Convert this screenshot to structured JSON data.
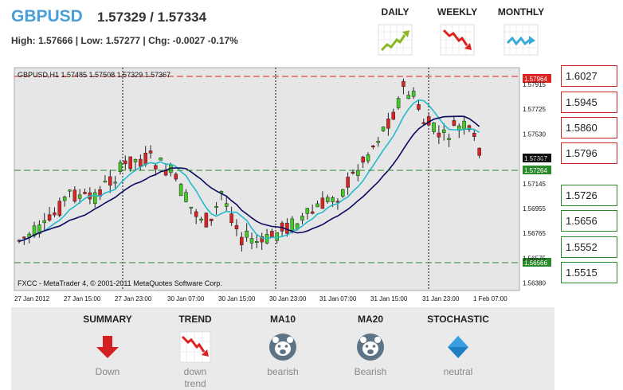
{
  "header": {
    "pair": "GBPUSD",
    "quote": "1.57329 / 1.57334",
    "stats": "High: 1.57666 | Low: 1.57277 | Chg: -0.0027 -0.17%"
  },
  "timeframes": [
    {
      "label": "DAILY",
      "icon": "uptrend-icon",
      "color": "#8ab820"
    },
    {
      "label": "WEEKLY",
      "icon": "downtrend-icon",
      "color": "#dd2222"
    },
    {
      "label": "MONTHLY",
      "icon": "sideways-icon",
      "color": "#3aaad8"
    }
  ],
  "chart": {
    "info": "GBPUSD,H1  1.57485 1.57508 1.57329 1.57367",
    "copyright": "FXCC - MetaTrader 4, © 2001-2011 MetaQuotes Software Corp.",
    "price_labels": [
      "1.57915",
      "1.57725",
      "1.57530",
      "1.57335",
      "1.57145",
      "1.56955",
      "1.56765",
      "1.56575",
      "1.56380"
    ],
    "level_labels": {
      "upper": "1.57964",
      "current": "1.57367",
      "mid": "1.57264",
      "lower": "1.56566"
    },
    "time_labels": [
      "27 Jan 2012",
      "27 Jan 15:00",
      "27 Jan 23:00",
      "30 Jan 07:00",
      "30 Jan 15:00",
      "30 Jan 23:00",
      "31 Jan 07:00",
      "31 Jan 15:00",
      "31 Jan 23:00",
      "1 Feb 07:00"
    ]
  },
  "chart_data": {
    "type": "candlestick",
    "symbol": "GBPUSD",
    "timeframe": "H1",
    "ylim": [
      1.5638,
      1.5801
    ],
    "resistance_levels": [
      1.6027,
      1.5945,
      1.586,
      1.5796
    ],
    "support_levels": [
      1.5726,
      1.5656,
      1.5552,
      1.5515
    ],
    "horizontal_lines": {
      "red": 1.57964,
      "green_mid": 1.57264,
      "green_low": 1.56566
    }
  },
  "levels": {
    "resistance": [
      "1.6027",
      "1.5945",
      "1.5860",
      "1.5796"
    ],
    "support": [
      "1.5726",
      "1.5656",
      "1.5552",
      "1.5515"
    ]
  },
  "indicators": [
    {
      "title": "SUMMARY",
      "value": "Down",
      "icon": "down-arrow-icon"
    },
    {
      "title": "TREND",
      "value": "down trend",
      "icon": "downtrend-icon"
    },
    {
      "title": "MA10",
      "value": "bearish",
      "icon": "bear-icon"
    },
    {
      "title": "MA20",
      "value": "Bearish",
      "icon": "bear-icon"
    },
    {
      "title": "STOCHASTIC",
      "value": "neutral",
      "icon": "diamond-icon"
    }
  ]
}
